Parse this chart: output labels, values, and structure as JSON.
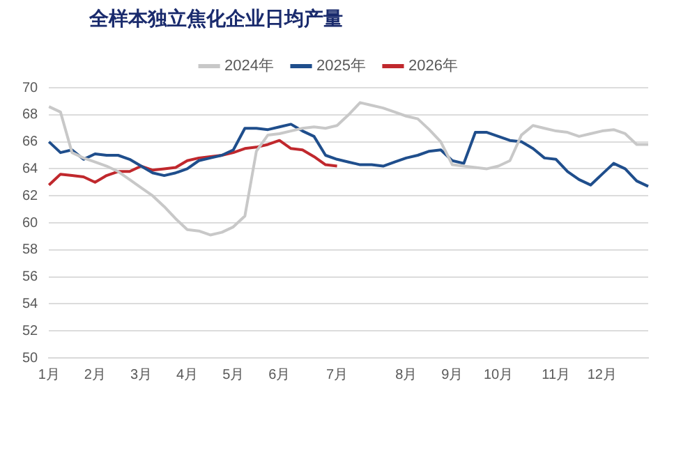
{
  "chart_data": {
    "type": "line",
    "title": "全样本独立焦化企业日均产量",
    "categories": [
      "1月",
      null,
      null,
      null,
      "2月",
      null,
      null,
      null,
      "3月",
      null,
      null,
      null,
      "4月",
      null,
      null,
      null,
      "5月",
      null,
      null,
      null,
      "6月",
      null,
      null,
      null,
      null,
      "7月",
      null,
      null,
      null,
      null,
      null,
      "8月",
      null,
      null,
      null,
      "9月",
      null,
      null,
      null,
      "10月",
      null,
      null,
      null,
      null,
      "11月",
      null,
      null,
      null,
      "12月",
      null,
      null,
      null,
      null
    ],
    "series": [
      {
        "name": "2024年",
        "color": "#c8c8c8",
        "values": [
          68.6,
          68.2,
          65.2,
          64.8,
          64.5,
          64.2,
          63.8,
          63.2,
          62.6,
          62.0,
          61.2,
          60.3,
          59.5,
          59.4,
          59.1,
          59.3,
          59.7,
          60.5,
          65.3,
          66.5,
          66.6,
          66.8,
          67.0,
          67.1,
          67.0,
          67.2,
          68.0,
          68.9,
          68.7,
          68.5,
          68.2,
          67.9,
          67.7,
          66.9,
          66.0,
          64.3,
          64.2,
          64.1,
          64.0,
          64.2,
          64.6,
          66.5,
          67.2,
          67.0,
          66.8,
          66.7,
          66.4,
          66.6,
          66.8,
          66.9,
          66.6,
          65.8,
          65.8
        ]
      },
      {
        "name": "2025年",
        "color": "#1f4e8c",
        "values": [
          66.0,
          65.2,
          65.4,
          64.7,
          65.1,
          65.0,
          65.0,
          64.7,
          64.2,
          63.7,
          63.5,
          63.7,
          64.0,
          64.6,
          64.8,
          65.0,
          65.4,
          67.0,
          67.0,
          66.9,
          67.1,
          67.3,
          66.8,
          66.4,
          65.0,
          64.7,
          64.5,
          64.3,
          64.3,
          64.2,
          64.5,
          64.8,
          65.0,
          65.3,
          65.4,
          64.6,
          64.4,
          66.7,
          66.7,
          66.4,
          66.1,
          66.0,
          65.5,
          64.8,
          64.7,
          63.8,
          63.2,
          62.8,
          63.6,
          64.4,
          64.0,
          63.1,
          62.7
        ]
      },
      {
        "name": "2026年",
        "color": "#c0282d",
        "values": [
          62.8,
          63.6,
          63.5,
          63.4,
          63.0,
          63.5,
          63.8,
          63.8,
          64.2,
          63.9,
          64.0,
          64.1,
          64.6,
          64.8,
          64.9,
          65.0,
          65.2,
          65.5,
          65.6,
          65.8,
          66.1,
          65.5,
          65.4,
          64.9,
          64.3,
          64.2,
          null,
          null,
          null,
          null,
          null,
          null,
          null,
          null,
          null,
          null,
          null,
          null,
          null,
          null,
          null,
          null,
          null,
          null,
          null,
          null,
          null,
          null,
          null,
          null,
          null,
          null,
          null
        ]
      }
    ],
    "ylim": [
      50,
      70
    ],
    "yticks": [
      50,
      52,
      54,
      56,
      58,
      60,
      62,
      64,
      66,
      68,
      70
    ],
    "grid": "y",
    "legend": "top",
    "marker": "none",
    "line_style": "solid"
  }
}
